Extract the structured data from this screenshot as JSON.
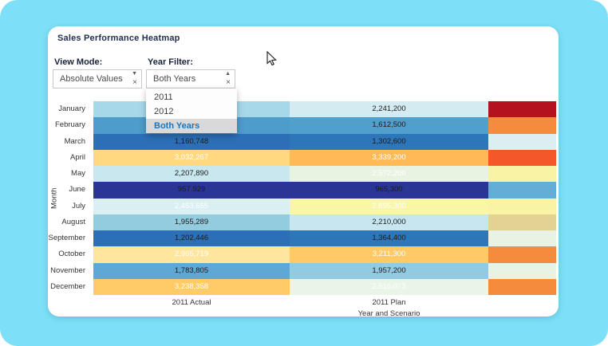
{
  "page": {
    "background_color": "#7DE0F8",
    "card_color": "#FFFFFF"
  },
  "header": {
    "title": "Sales Performance Heatmap"
  },
  "controls": {
    "view_mode": {
      "label": "View Mode:",
      "value": "Absolute Values",
      "caret": "▼",
      "clear": "×"
    },
    "year_filter": {
      "label": "Year Filter:",
      "value": "Both Years",
      "caret": "▲",
      "clear": "×",
      "menu": [
        {
          "label": "2011",
          "selected": false
        },
        {
          "label": "2012",
          "selected": false
        },
        {
          "label": "Both Years",
          "selected": true
        }
      ]
    }
  },
  "chart_data": {
    "type": "heatmap",
    "title": "Sales Performance Heatmap",
    "xlabel": "Year and Scenario",
    "ylabel": "Month",
    "columns": [
      {
        "label": "2011 Actual"
      },
      {
        "label": "2011 Plan"
      },
      {
        "label": ""
      }
    ],
    "rows": [
      {
        "month": "January",
        "actual": {
          "value": "",
          "bg": "#A6D8EA",
          "text": "dark"
        },
        "plan": {
          "value": "2,241,200",
          "bg": "#D5EBF2",
          "text": "dark"
        },
        "extra": {
          "bg": "#B5121F"
        }
      },
      {
        "month": "February",
        "actual": {
          "value": "",
          "bg": "#4E9CCB",
          "text": "dark"
        },
        "plan": {
          "value": "1,612,500",
          "bg": "#509FCD",
          "text": "dark"
        },
        "extra": {
          "bg": "#F58B3C"
        }
      },
      {
        "month": "March",
        "actual": {
          "value": "1,160,748",
          "bg": "#2D6FB7",
          "text": "dark"
        },
        "plan": {
          "value": "1,302,600",
          "bg": "#2E76BA",
          "text": "dark"
        },
        "extra": {
          "bg": "#DDEEF3"
        }
      },
      {
        "month": "April",
        "actual": {
          "value": "3,032,267",
          "bg": "#FFD87F",
          "text": "light"
        },
        "plan": {
          "value": "3,339,200",
          "bg": "#FFBA57",
          "text": "light"
        },
        "extra": {
          "bg": "#F4582A"
        }
      },
      {
        "month": "May",
        "actual": {
          "value": "2,207,890",
          "bg": "#C8E7EF",
          "text": "dark"
        },
        "plan": {
          "value": "2,572,200",
          "bg": "#E9F3E2",
          "text": "light"
        },
        "extra": {
          "bg": "#F9F4A5"
        }
      },
      {
        "month": "June",
        "actual": {
          "value": "957,929",
          "bg": "#2B3595",
          "text": "dark"
        },
        "plan": {
          "value": "965,300",
          "bg": "#2B3595",
          "text": "dark"
        },
        "extra": {
          "bg": "#63AED7"
        }
      },
      {
        "month": "July",
        "actual": {
          "value": "2,453,655",
          "bg": "#DAEFF1",
          "text": "light"
        },
        "plan": {
          "value": "2,895,300",
          "bg": "#F9F6A8",
          "text": "light"
        },
        "extra": {
          "bg": "#F9F4A5"
        }
      },
      {
        "month": "August",
        "actual": {
          "value": "1,955,289",
          "bg": "#93CCDF",
          "text": "dark"
        },
        "plan": {
          "value": "2,210,000",
          "bg": "#C7E6F0",
          "text": "dark"
        },
        "extra": {
          "bg": "#E3D294"
        }
      },
      {
        "month": "September",
        "actual": {
          "value": "1,202,446",
          "bg": "#2D6FB7",
          "text": "dark"
        },
        "plan": {
          "value": "1,364,400",
          "bg": "#2E76BA",
          "text": "dark"
        },
        "extra": {
          "bg": "#E9F3E3"
        }
      },
      {
        "month": "October",
        "actual": {
          "value": "2,965,719",
          "bg": "#FFE69C",
          "text": "light"
        },
        "plan": {
          "value": "3,211,300",
          "bg": "#FFC966",
          "text": "light"
        },
        "extra": {
          "bg": "#F58B3C"
        }
      },
      {
        "month": "November",
        "actual": {
          "value": "1,783,805",
          "bg": "#5FA8D5",
          "text": "dark"
        },
        "plan": {
          "value": "1,957,200",
          "bg": "#92CBE1",
          "text": "dark"
        },
        "extra": {
          "bg": "#E9F3E3"
        }
      },
      {
        "month": "December",
        "actual": {
          "value": "3,238,358",
          "bg": "#FFCB66",
          "text": "light"
        },
        "plan": {
          "value": "2,516,073",
          "bg": "#E9F5E7",
          "text": "light"
        },
        "extra": {
          "bg": "#F58B3C"
        }
      }
    ]
  }
}
